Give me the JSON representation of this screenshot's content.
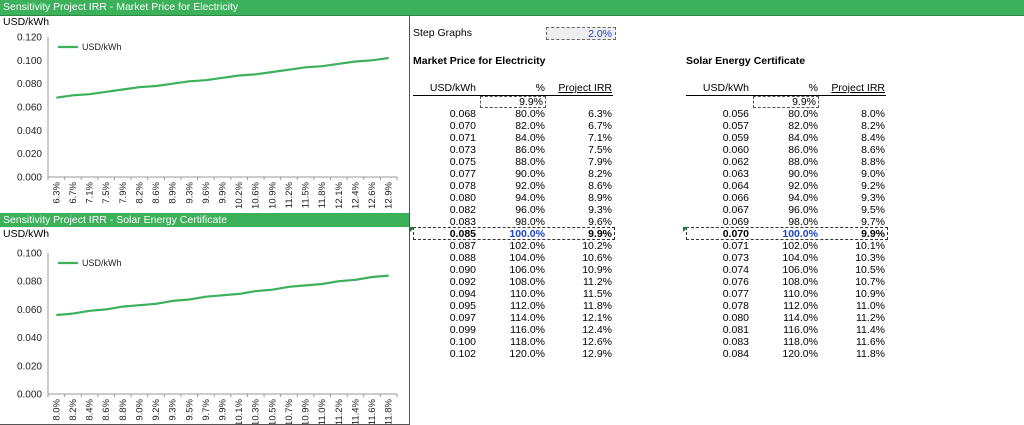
{
  "window": {
    "title": "Sensitivity Project IRR - Market Price for Electricity"
  },
  "charts": [
    {
      "section_title": "Sensitivity Project IRR - Market Price for Electricity",
      "unit_label": "USD/kWh",
      "chart_data": {
        "type": "line",
        "legend": "top-left",
        "series": [
          {
            "name": "USD/kWh",
            "values": [
              0.068,
              0.07,
              0.071,
              0.073,
              0.075,
              0.077,
              0.078,
              0.08,
              0.082,
              0.083,
              0.085,
              0.087,
              0.088,
              0.09,
              0.092,
              0.094,
              0.095,
              0.097,
              0.099,
              0.1,
              0.102
            ]
          }
        ],
        "categories": [
          "6.3%",
          "6.7%",
          "7.1%",
          "7.5%",
          "7.9%",
          "8.2%",
          "8.6%",
          "8.9%",
          "9.3%",
          "9.6%",
          "9.9%",
          "10.2%",
          "10.6%",
          "10.9%",
          "11.2%",
          "11.5%",
          "11.8%",
          "12.1%",
          "12.4%",
          "12.6%",
          "12.9%"
        ],
        "ylim": [
          0,
          0.12
        ],
        "yticks": [
          "0.000",
          "0.020",
          "0.040",
          "0.060",
          "0.080",
          "0.100",
          "0.120"
        ],
        "line_color": "#3db05b"
      }
    },
    {
      "section_title": "Sensitivity Project IRR - Solar Energy Certificate",
      "unit_label": "USD/kWh",
      "chart_data": {
        "type": "line",
        "legend": "top-left",
        "series": [
          {
            "name": "USD/kWh",
            "values": [
              0.056,
              0.057,
              0.059,
              0.06,
              0.062,
              0.063,
              0.064,
              0.066,
              0.067,
              0.069,
              0.07,
              0.071,
              0.073,
              0.074,
              0.076,
              0.077,
              0.078,
              0.08,
              0.081,
              0.083,
              0.084
            ]
          }
        ],
        "categories": [
          "8.0%",
          "8.2%",
          "8.4%",
          "8.6%",
          "8.8%",
          "9.0%",
          "9.2%",
          "9.3%",
          "9.5%",
          "9.7%",
          "9.9%",
          "10.1%",
          "10.3%",
          "10.5%",
          "10.7%",
          "10.9%",
          "11.0%",
          "11.2%",
          "11.4%",
          "11.6%",
          "11.8%"
        ],
        "ylim": [
          0,
          0.1
        ],
        "yticks": [
          "0.000",
          "0.020",
          "0.040",
          "0.060",
          "0.080",
          "0.100"
        ],
        "line_color": "#3db05b"
      }
    }
  ],
  "step": {
    "label": "Step Graphs",
    "value": "2.0%"
  },
  "tables": [
    {
      "title": "Market Price for Electricity",
      "headers": {
        "value": "USD/kWh",
        "pct": "%",
        "irr": "Project IRR"
      },
      "base_irr": "9.9%",
      "center_index": 10,
      "rows": [
        [
          "0.068",
          "80.0%",
          "6.3%"
        ],
        [
          "0.070",
          "82.0%",
          "6.7%"
        ],
        [
          "0.071",
          "84.0%",
          "7.1%"
        ],
        [
          "0.073",
          "86.0%",
          "7.5%"
        ],
        [
          "0.075",
          "88.0%",
          "7.9%"
        ],
        [
          "0.077",
          "90.0%",
          "8.2%"
        ],
        [
          "0.078",
          "92.0%",
          "8.6%"
        ],
        [
          "0.080",
          "94.0%",
          "8.9%"
        ],
        [
          "0.082",
          "96.0%",
          "9.3%"
        ],
        [
          "0.083",
          "98.0%",
          "9.6%"
        ],
        [
          "0.085",
          "100.0%",
          "9.9%"
        ],
        [
          "0.087",
          "102.0%",
          "10.2%"
        ],
        [
          "0.088",
          "104.0%",
          "10.6%"
        ],
        [
          "0.090",
          "106.0%",
          "10.9%"
        ],
        [
          "0.092",
          "108.0%",
          "11.2%"
        ],
        [
          "0.094",
          "110.0%",
          "11.5%"
        ],
        [
          "0.095",
          "112.0%",
          "11.8%"
        ],
        [
          "0.097",
          "114.0%",
          "12.1%"
        ],
        [
          "0.099",
          "116.0%",
          "12.4%"
        ],
        [
          "0.100",
          "118.0%",
          "12.6%"
        ],
        [
          "0.102",
          "120.0%",
          "12.9%"
        ]
      ]
    },
    {
      "title": "Solar Energy Certificate",
      "headers": {
        "value": "USD/kWh",
        "pct": "%",
        "irr": "Project IRR"
      },
      "base_irr": "9.9%",
      "center_index": 10,
      "rows": [
        [
          "0.056",
          "80.0%",
          "8.0%"
        ],
        [
          "0.057",
          "82.0%",
          "8.2%"
        ],
        [
          "0.059",
          "84.0%",
          "8.4%"
        ],
        [
          "0.060",
          "86.0%",
          "8.6%"
        ],
        [
          "0.062",
          "88.0%",
          "8.8%"
        ],
        [
          "0.063",
          "90.0%",
          "9.0%"
        ],
        [
          "0.064",
          "92.0%",
          "9.2%"
        ],
        [
          "0.066",
          "94.0%",
          "9.3%"
        ],
        [
          "0.067",
          "96.0%",
          "9.5%"
        ],
        [
          "0.069",
          "98.0%",
          "9.7%"
        ],
        [
          "0.070",
          "100.0%",
          "9.9%"
        ],
        [
          "0.071",
          "102.0%",
          "10.1%"
        ],
        [
          "0.073",
          "104.0%",
          "10.3%"
        ],
        [
          "0.074",
          "106.0%",
          "10.5%"
        ],
        [
          "0.076",
          "108.0%",
          "10.7%"
        ],
        [
          "0.077",
          "110.0%",
          "10.9%"
        ],
        [
          "0.078",
          "112.0%",
          "11.0%"
        ],
        [
          "0.080",
          "114.0%",
          "11.2%"
        ],
        [
          "0.081",
          "116.0%",
          "11.4%"
        ],
        [
          "0.083",
          "118.0%",
          "11.6%"
        ],
        [
          "0.084",
          "120.0%",
          "11.8%"
        ]
      ]
    }
  ]
}
